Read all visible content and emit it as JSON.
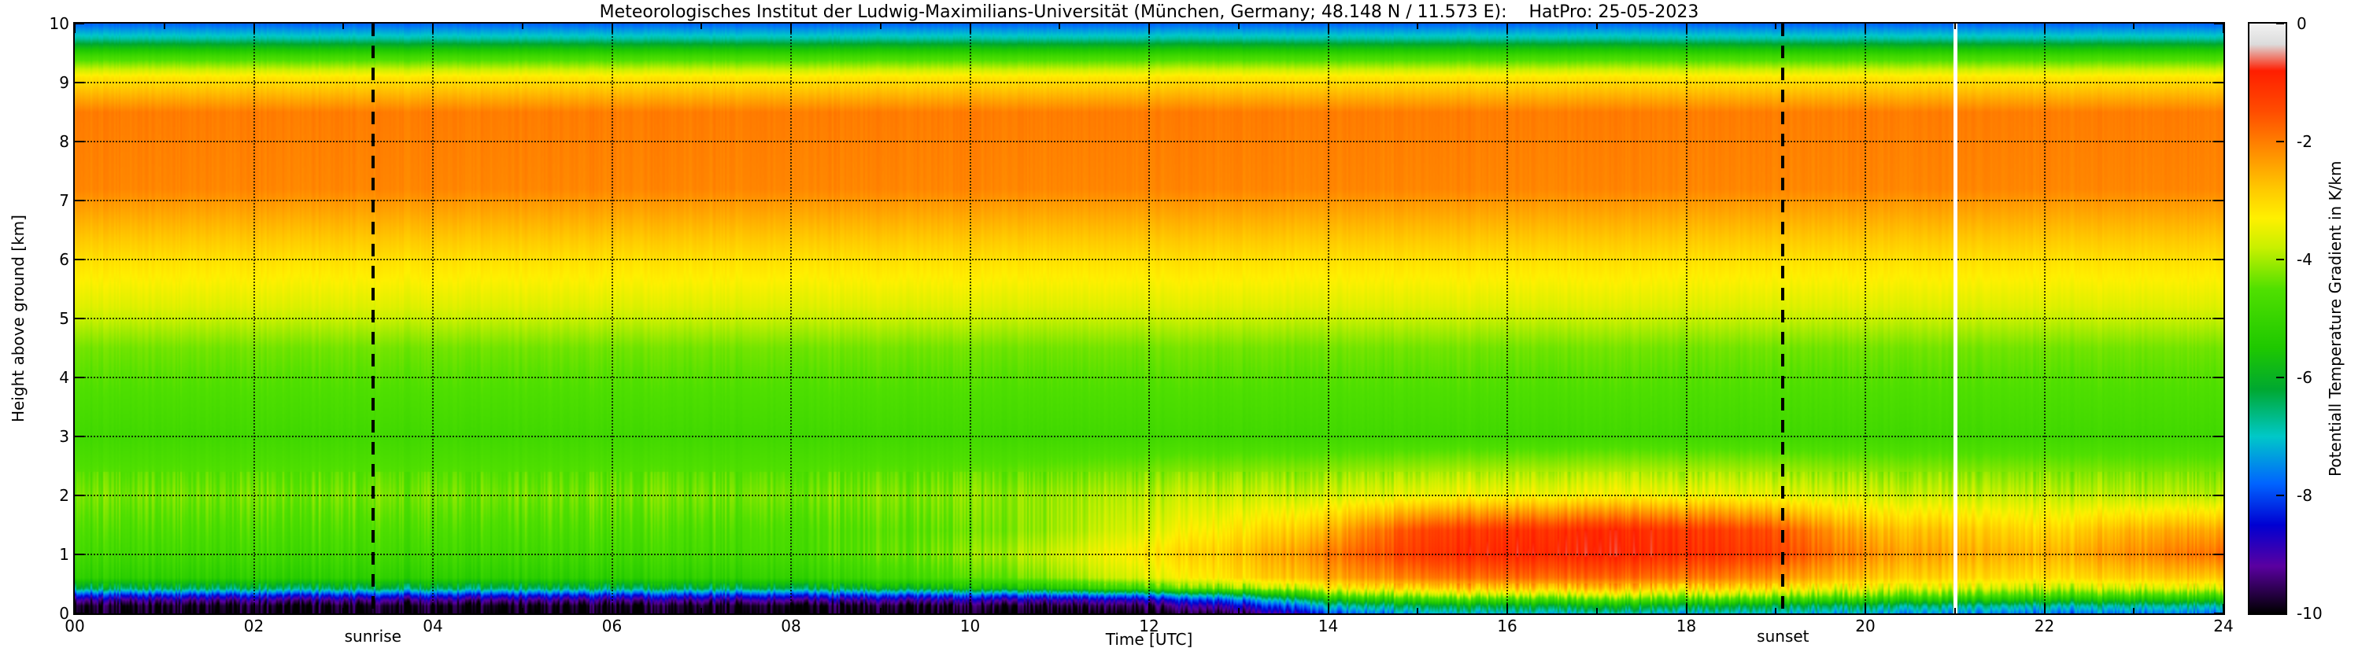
{
  "chart_data": {
    "type": "heatmap",
    "title": "Meteorologisches Institut der Ludwig-Maximilians-Universität (München, Germany; 48.148 N / 11.573 E):    HatPro: 25-05-2023",
    "xlabel": "Time [UTC]",
    "ylabel": "Height above ground [km]",
    "xlim": [
      0,
      24
    ],
    "ylim": [
      0,
      10
    ],
    "x_ticks": [
      "00",
      "02",
      "04",
      "06",
      "08",
      "10",
      "12",
      "14",
      "16",
      "18",
      "20",
      "22",
      "24"
    ],
    "y_ticks": [
      "0",
      "1",
      "2",
      "3",
      "4",
      "5",
      "6",
      "7",
      "8",
      "9",
      "10"
    ],
    "value_name": "potential temperature gradient",
    "value_unit": "K/km",
    "colorbar": {
      "label": "Potentiall Temperature Gradient in K/km",
      "ticks": [
        "0",
        "-2",
        "-4",
        "-6",
        "-8",
        "-10"
      ],
      "tick_values": [
        0,
        -2,
        -4,
        -6,
        -8,
        -10
      ],
      "min": -10,
      "max": 0,
      "stops": [
        [
          0,
          "#f2f2f2"
        ],
        [
          -0.35,
          "#dcdcdc"
        ],
        [
          -0.8,
          "#ff1e00"
        ],
        [
          -1.5,
          "#ff4d00"
        ],
        [
          -2.2,
          "#ff9000"
        ],
        [
          -2.8,
          "#ffc800"
        ],
        [
          -3.3,
          "#fff000"
        ],
        [
          -3.8,
          "#c8f000"
        ],
        [
          -4.5,
          "#50e000"
        ],
        [
          -5.5,
          "#1ec800"
        ],
        [
          -6.2,
          "#00a830"
        ],
        [
          -7.0,
          "#00c8c8"
        ],
        [
          -7.8,
          "#0064ff"
        ],
        [
          -8.5,
          "#0000d2"
        ],
        [
          -9.2,
          "#5a00a0"
        ],
        [
          -10,
          "#000000"
        ]
      ]
    },
    "annotations": {
      "sunrise_label": "sunrise",
      "sunrise_time_utc": 3.33,
      "sunset_label": "sunset",
      "sunset_time_utc": 19.08,
      "data_gap_time_utc": 21.0
    },
    "times": [
      0,
      2,
      4,
      6,
      8,
      10,
      12,
      13,
      14,
      15,
      16,
      17,
      18,
      19,
      20,
      21,
      22,
      23,
      24
    ],
    "heights": [
      0.0,
      0.12,
      0.22,
      0.3,
      0.42,
      0.6,
      1.0,
      1.4,
      2.0,
      3.0,
      4.5,
      5.2,
      6.0,
      6.6,
      7.2,
      8.5,
      9.1,
      9.45,
      9.75,
      10.0
    ],
    "values": [
      [
        -10,
        -10,
        -10,
        -10,
        -10,
        -10,
        -10,
        -9.6,
        -8.0,
        -7.2,
        -7.0,
        -7.0,
        -7.0,
        -7.0,
        -7.2,
        -7.5,
        -7.6,
        -7.6,
        -7.6
      ],
      [
        -9.9,
        -9.9,
        -9.9,
        -9.9,
        -9.9,
        -9.8,
        -9.6,
        -8.8,
        -7.0,
        -6.3,
        -6.1,
        -6.0,
        -6.0,
        -6.2,
        -6.4,
        -6.7,
        -6.8,
        -6.8,
        -6.8
      ],
      [
        -9.2,
        -9.2,
        -9.2,
        -9.2,
        -9.1,
        -9.0,
        -8.8,
        -7.8,
        -5.8,
        -5.0,
        -4.8,
        -4.7,
        -4.7,
        -4.9,
        -5.2,
        -5.5,
        -5.6,
        -5.6,
        -5.6
      ],
      [
        -8.3,
        -8.3,
        -8.3,
        -8.3,
        -8.2,
        -8.0,
        -7.6,
        -6.6,
        -4.6,
        -4.0,
        -3.8,
        -3.8,
        -3.8,
        -4.0,
        -4.3,
        -4.6,
        -4.7,
        -4.7,
        -4.7
      ],
      [
        -6.4,
        -6.4,
        -6.4,
        -6.4,
        -6.3,
        -5.8,
        -4.8,
        -4.2,
        -3.4,
        -3.0,
        -2.8,
        -2.8,
        -2.9,
        -3.1,
        -3.5,
        -3.7,
        -3.8,
        -3.7,
        -3.6
      ],
      [
        -5.2,
        -5.2,
        -5.2,
        -5.2,
        -5.1,
        -4.6,
        -3.6,
        -3.1,
        -2.5,
        -2.0,
        -1.8,
        -1.8,
        -1.9,
        -2.2,
        -2.8,
        -3.0,
        -3.1,
        -2.9,
        -2.8
      ],
      [
        -4.8,
        -4.8,
        -4.8,
        -4.8,
        -4.7,
        -4.2,
        -3.2,
        -2.8,
        -2.0,
        -1.2,
        -0.9,
        -0.9,
        -1.0,
        -1.3,
        -2.2,
        -2.5,
        -2.6,
        -2.2,
        -1.8
      ],
      [
        -4.6,
        -4.6,
        -4.6,
        -4.6,
        -4.6,
        -4.4,
        -3.6,
        -3.2,
        -2.6,
        -1.4,
        -1.1,
        -1.0,
        -1.1,
        -1.5,
        -2.6,
        -2.8,
        -3.0,
        -2.6,
        -2.4
      ],
      [
        -4.3,
        -4.3,
        -4.3,
        -4.3,
        -4.3,
        -4.2,
        -3.9,
        -3.8,
        -3.7,
        -3.5,
        -3.4,
        -3.4,
        -3.4,
        -3.5,
        -3.7,
        -3.8,
        -3.8,
        -3.9,
        -3.9
      ],
      [
        -4.8,
        -4.8,
        -4.8,
        -4.8,
        -4.8,
        -4.8,
        -4.8,
        -4.8,
        -4.8,
        -4.8,
        -4.8,
        -4.8,
        -4.8,
        -4.8,
        -4.8,
        -4.8,
        -4.8,
        -4.8,
        -4.8
      ],
      [
        -4.3,
        -4.3,
        -4.3,
        -4.3,
        -4.3,
        -4.3,
        -4.3,
        -4.3,
        -4.3,
        -4.3,
        -4.3,
        -4.3,
        -4.3,
        -4.3,
        -4.3,
        -4.3,
        -4.3,
        -4.3,
        -4.3
      ],
      [
        -3.6,
        -3.6,
        -3.6,
        -3.6,
        -3.6,
        -3.6,
        -3.6,
        -3.6,
        -3.6,
        -3.6,
        -3.6,
        -3.6,
        -3.6,
        -3.6,
        -3.6,
        -3.6,
        -3.6,
        -3.6,
        -3.6
      ],
      [
        -3.1,
        -3.1,
        -3.1,
        -3.1,
        -3.1,
        -3.1,
        -3.1,
        -3.1,
        -3.1,
        -3.1,
        -3.1,
        -3.1,
        -3.1,
        -3.1,
        -3.1,
        -3.1,
        -3.1,
        -3.1,
        -3.1
      ],
      [
        -2.6,
        -2.6,
        -2.6,
        -2.6,
        -2.6,
        -2.6,
        -2.6,
        -2.6,
        -2.6,
        -2.6,
        -2.6,
        -2.6,
        -2.6,
        -2.6,
        -2.6,
        -2.6,
        -2.6,
        -2.6,
        -2.6
      ],
      [
        -2.1,
        -2.1,
        -2.1,
        -2.1,
        -2.1,
        -2.1,
        -2.1,
        -2.1,
        -2.1,
        -2.1,
        -2.1,
        -2.1,
        -2.1,
        -2.1,
        -2.1,
        -2.1,
        -2.1,
        -2.1,
        -2.1
      ],
      [
        -2.0,
        -2.0,
        -2.0,
        -2.0,
        -2.0,
        -2.0,
        -2.0,
        -2.0,
        -2.0,
        -2.0,
        -2.0,
        -2.0,
        -2.0,
        -2.0,
        -2.0,
        -2.0,
        -2.0,
        -2.0,
        -2.0
      ],
      [
        -3.2,
        -3.2,
        -3.2,
        -3.2,
        -3.2,
        -3.2,
        -3.2,
        -3.2,
        -3.2,
        -3.2,
        -3.2,
        -3.2,
        -3.2,
        -3.2,
        -3.2,
        -3.2,
        -3.2,
        -3.2,
        -3.2
      ],
      [
        -4.8,
        -4.8,
        -4.8,
        -4.8,
        -4.8,
        -4.8,
        -4.8,
        -4.8,
        -4.8,
        -4.8,
        -4.8,
        -4.8,
        -4.8,
        -4.8,
        -4.8,
        -4.8,
        -4.8,
        -4.8,
        -4.8
      ],
      [
        -6.8,
        -6.8,
        -6.8,
        -6.8,
        -6.8,
        -6.8,
        -6.8,
        -6.8,
        -6.8,
        -6.8,
        -6.8,
        -6.8,
        -6.8,
        -6.8,
        -6.8,
        -6.8,
        -6.8,
        -6.8,
        -6.8
      ],
      [
        -7.8,
        -7.8,
        -7.8,
        -7.8,
        -7.8,
        -7.8,
        -7.8,
        -7.8,
        -7.8,
        -7.8,
        -7.8,
        -7.8,
        -7.8,
        -7.8,
        -7.8,
        -7.8,
        -7.8,
        -7.8,
        -7.8
      ]
    ]
  }
}
